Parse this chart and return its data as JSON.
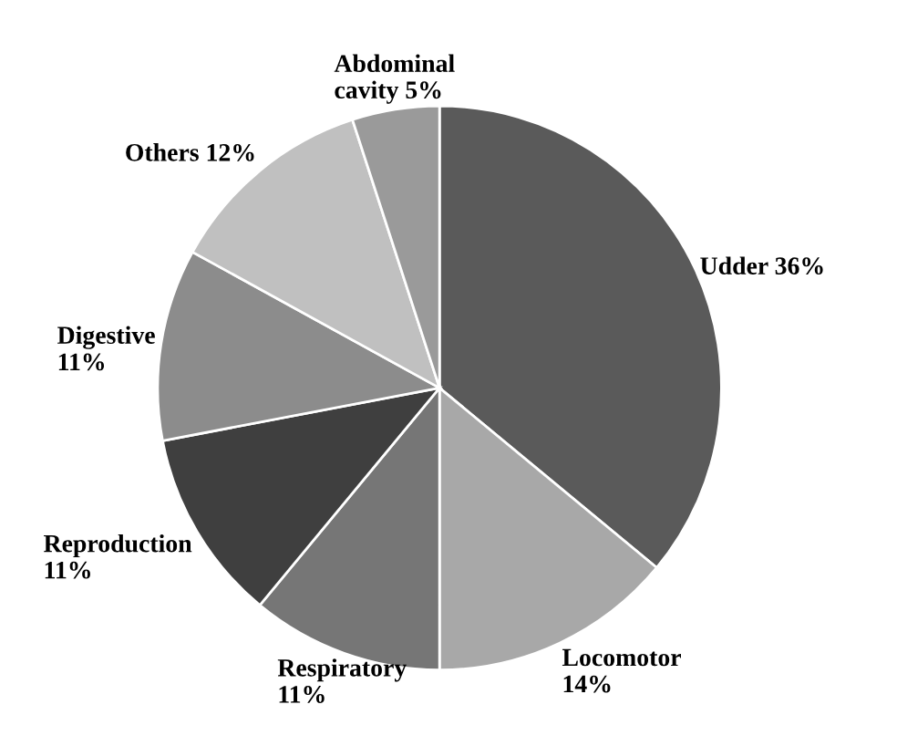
{
  "chart_data": {
    "type": "pie",
    "categories": [
      "Udder",
      "Locomotor",
      "Respiratory",
      "Reproduction",
      "Digestive",
      "Others",
      "Abdominal cavity"
    ],
    "values": [
      36,
      14,
      11,
      11,
      11,
      12,
      5
    ],
    "value_labels": [
      "36%",
      "14%",
      "11%",
      "11%",
      "11%",
      "12%",
      "5%"
    ],
    "colors": [
      "#5a5a5a",
      "#a8a8a8",
      "#767676",
      "#3f3f3f",
      "#8c8c8c",
      "#c0c0c0",
      "#9a9a9a"
    ]
  }
}
